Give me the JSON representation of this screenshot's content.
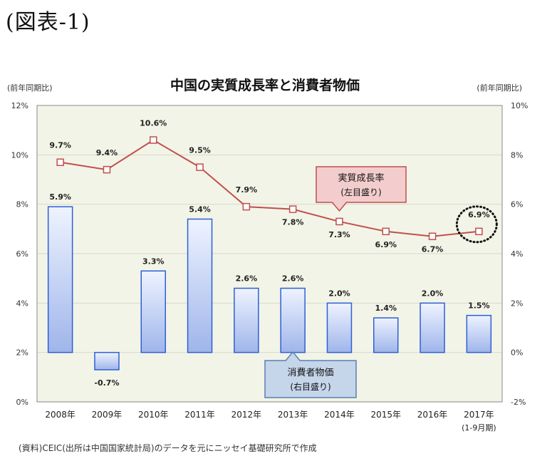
{
  "figure_label": "(図表-1)",
  "source_note": "(資料)CEIC(出所は中国国家統計局)のデータを元にニッセイ基礎研究所で作成",
  "chart_data": {
    "type": "bar",
    "title": "中国の実質成長率と消費者物価",
    "left_axis_label": "(前年同期比)",
    "right_axis_label": "(前年同期比)",
    "categories": [
      "2008年",
      "2009年",
      "2010年",
      "2011年",
      "2012年",
      "2013年",
      "2014年",
      "2015年",
      "2016年",
      "2017年"
    ],
    "category_sublabels": [
      "",
      "",
      "",
      "",
      "",
      "",
      "",
      "",
      "",
      "(1-9月期)"
    ],
    "left_axis": {
      "min": 0,
      "max": 12,
      "step": 2,
      "ticks": [
        "0%",
        "2%",
        "4%",
        "6%",
        "8%",
        "10%",
        "12%"
      ]
    },
    "right_axis": {
      "min": -2,
      "max": 10,
      "step": 2,
      "ticks": [
        "-2%",
        "0%",
        "2%",
        "4%",
        "6%",
        "8%",
        "10%"
      ]
    },
    "grid": true,
    "series": [
      {
        "name": "実質成長率",
        "name_sub": "(左目盛り)",
        "type": "line",
        "axis": "left",
        "color": "#c0504d",
        "values": [
          9.7,
          9.4,
          10.6,
          9.5,
          7.9,
          7.8,
          7.3,
          6.9,
          6.7,
          6.9
        ],
        "labels": [
          "9.7%",
          "9.4%",
          "10.6%",
          "9.5%",
          "7.9%",
          "7.8%",
          "7.3%",
          "6.9%",
          "6.7%",
          "6.9%"
        ]
      },
      {
        "name": "消費者物価",
        "name_sub": "(右目盛り)",
        "type": "bar",
        "axis": "right",
        "color": "#2e5fd6",
        "values": [
          5.9,
          -0.7,
          3.3,
          5.4,
          2.6,
          2.6,
          2.0,
          1.4,
          2.0,
          1.5
        ],
        "labels": [
          "5.9%",
          "-0.7%",
          "3.3%",
          "5.4%",
          "2.6%",
          "2.6%",
          "2.0%",
          "1.4%",
          "2.0%",
          "1.5%"
        ]
      }
    ],
    "highlight_index": 9
  },
  "colors": {
    "plot_bg": "#f2f4e7",
    "grid": "#d7d9cc",
    "line": "#c0504d",
    "bar_stroke": "#2e5fd6",
    "bar_fill_top": "#eef3ff",
    "bar_fill_bottom": "#9fb5ea",
    "callout_line_fill": "#f3cdcd",
    "callout_line_stroke": "#c0504d",
    "callout_bar_fill": "#c5d5ea",
    "callout_bar_stroke": "#5b7fb1"
  }
}
